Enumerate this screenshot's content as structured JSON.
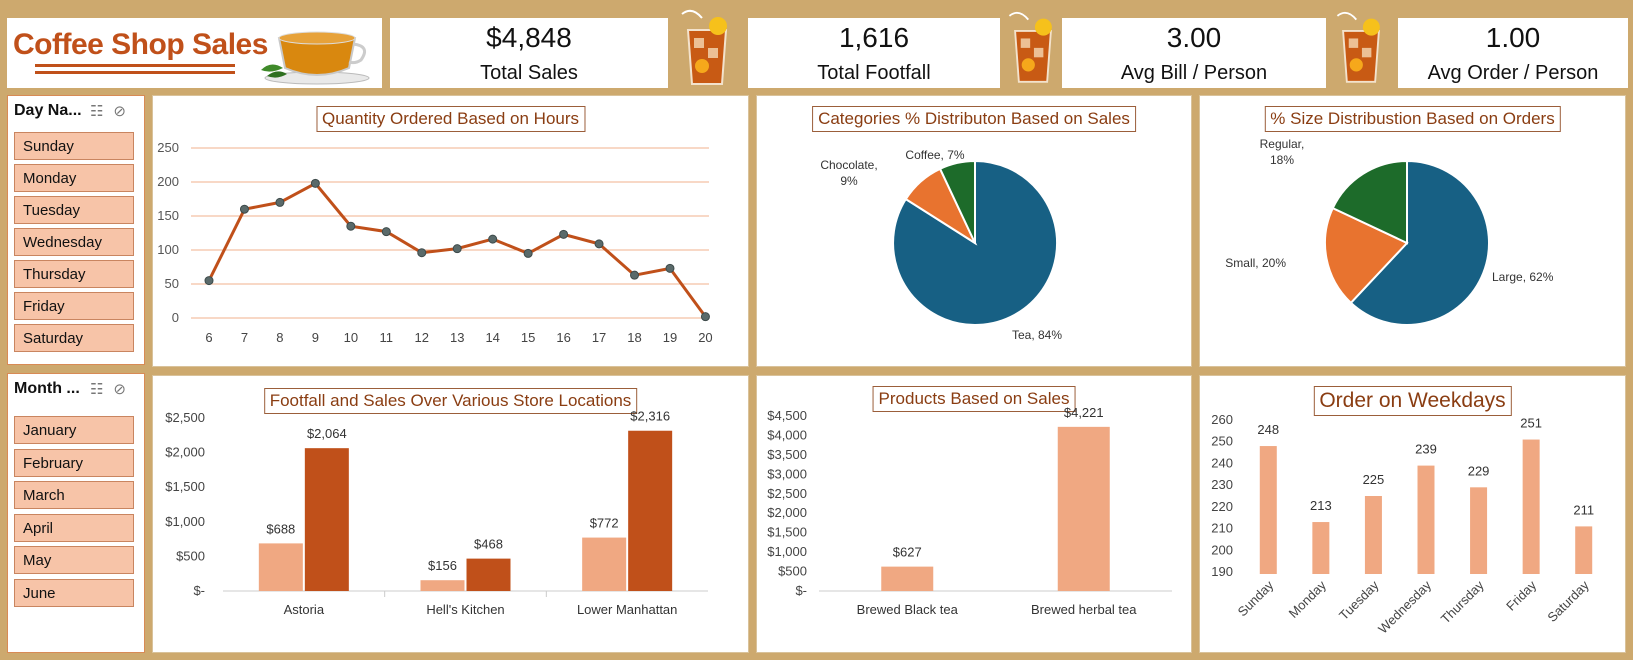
{
  "header": {
    "title": "Coffee Shop Sales"
  },
  "kpis": [
    {
      "value": "$4,848",
      "label": "Total Sales"
    },
    {
      "value": "1,616",
      "label": "Total Footfall"
    },
    {
      "value": "3.00",
      "label": "Avg Bill / Person"
    },
    {
      "value": "1.00",
      "label": "Avg Order / Person"
    }
  ],
  "slicers": {
    "day": {
      "title": "Day Na...",
      "items": [
        "Sunday",
        "Monday",
        "Tuesday",
        "Wednesday",
        "Thursday",
        "Friday",
        "Saturday"
      ]
    },
    "month": {
      "title": "Month ...",
      "items": [
        "January",
        "February",
        "March",
        "April",
        "May",
        "June"
      ]
    }
  },
  "colors": {
    "frame": "#cda96e",
    "line": "#c0501a",
    "bar_light": "#f0a882",
    "bar_dark": "#c0501a",
    "pie_blue": "#176084",
    "pie_orange": "#e8732f",
    "pie_green": "#1d6b2a"
  },
  "chart_data": [
    {
      "type": "line",
      "title": "Quantity Ordered Based on Hours",
      "x": [
        6,
        7,
        8,
        9,
        10,
        11,
        12,
        13,
        14,
        15,
        16,
        17,
        18,
        19,
        20
      ],
      "values": [
        55,
        160,
        170,
        198,
        135,
        127,
        96,
        102,
        116,
        95,
        123,
        109,
        63,
        73,
        2
      ],
      "ylim": [
        0,
        250
      ],
      "yticks": [
        0,
        50,
        100,
        150,
        200,
        250
      ],
      "grid": true
    },
    {
      "type": "pie",
      "title": "Categories % Distributon Based on Sales",
      "slices": [
        {
          "label": "Tea, 84%",
          "value": 84,
          "color": "#176084"
        },
        {
          "label": "Chocolate, 9%",
          "value": 9,
          "color": "#e8732f"
        },
        {
          "label": "Coffee, 7%",
          "value": 7,
          "color": "#1d6b2a"
        }
      ]
    },
    {
      "type": "pie",
      "title": "% Size Distribustion Based on Orders",
      "slices": [
        {
          "label": "Large, 62%",
          "value": 62,
          "color": "#176084"
        },
        {
          "label": "Small, 20%",
          "value": 20,
          "color": "#e8732f"
        },
        {
          "label": "Regular, 18%",
          "value": 18,
          "color": "#1d6b2a"
        }
      ]
    },
    {
      "type": "bar",
      "title": "Footfall and Sales Over Various Store Locations",
      "categories": [
        "Astoria",
        "Hell's Kitchen",
        "Lower Manhattan"
      ],
      "series": [
        {
          "values": [
            688,
            156,
            772
          ],
          "labels": [
            "$688",
            "$156",
            "$772"
          ],
          "color": "#f0a882"
        },
        {
          "values": [
            2064,
            468,
            2316
          ],
          "labels": [
            "$2,064",
            "$468",
            "$2,316"
          ],
          "color": "#c0501a"
        }
      ],
      "ylim": [
        0,
        2500
      ],
      "yticks": [
        "$-",
        "$500",
        "$1,000",
        "$1,500",
        "$2,000",
        "$2,500"
      ]
    },
    {
      "type": "bar",
      "title": "Products Based on Sales",
      "categories": [
        "Brewed Black tea",
        "Brewed herbal tea"
      ],
      "values": [
        627,
        4221
      ],
      "labels": [
        "$627",
        "$4,221"
      ],
      "ylim": [
        0,
        4500
      ],
      "yticks": [
        "$-",
        "$500",
        "$1,000",
        "$1,500",
        "$2,000",
        "$2,500",
        "$3,000",
        "$3,500",
        "$4,000",
        "$4,500"
      ]
    },
    {
      "type": "bar",
      "title": "Order on Weekdays",
      "categories": [
        "Sunday",
        "Monday",
        "Tuesday",
        "Wednesday",
        "Thursday",
        "Friday",
        "Saturday"
      ],
      "values": [
        248,
        213,
        225,
        239,
        229,
        251,
        211
      ],
      "ylim": [
        190,
        260
      ],
      "yticks": [
        190,
        200,
        210,
        220,
        230,
        240,
        250,
        260
      ]
    }
  ]
}
